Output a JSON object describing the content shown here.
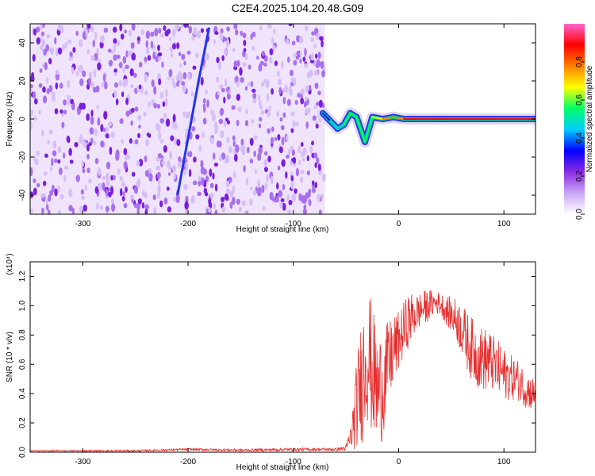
{
  "title": "C2E4.2025.104.20.48.G09",
  "chart_data": [
    {
      "type": "heatmap",
      "xlabel": "Height of straight line (km)",
      "ylabel": "Frequency (Hz)",
      "xlim": [
        -350,
        130
      ],
      "ylim": [
        -50,
        50
      ],
      "x_ticks": [
        "-300",
        "-200",
        "-100",
        "0",
        "100"
      ],
      "y_ticks": [
        "-40",
        "-20",
        "0",
        "20",
        "40"
      ],
      "colorbar": {
        "label": "Normalized spectral amplitude",
        "range": [
          0.0,
          1.0
        ],
        "ticks": [
          "0.0",
          "0.2",
          "0.4",
          "0.6",
          "0.8"
        ],
        "colors": [
          "#ffffff",
          "#c9a6f5",
          "#8a2be2",
          "#0000ff",
          "#00ccff",
          "#00ff66",
          "#ffff00",
          "#ff8000",
          "#ff0000",
          "#ff66cc"
        ]
      },
      "noise_region": {
        "x_range": [
          -350,
          -70
        ],
        "f_range": [
          -50,
          50
        ],
        "level": 0.1
      },
      "drift_trace": [
        {
          "x": -180,
          "f": 48
        },
        {
          "x": -190,
          "f": 20
        },
        {
          "x": -200,
          "f": -10
        },
        {
          "x": -210,
          "f": -40
        }
      ],
      "carrier_trace": [
        {
          "x": -72,
          "f": 3,
          "amp": 0.3
        },
        {
          "x": -65,
          "f": -1,
          "amp": 0.35
        },
        {
          "x": -58,
          "f": -5,
          "amp": 0.45
        },
        {
          "x": -52,
          "f": -3,
          "amp": 0.5
        },
        {
          "x": -46,
          "f": 3,
          "amp": 0.55
        },
        {
          "x": -40,
          "f": 1,
          "amp": 0.6
        },
        {
          "x": -32,
          "f": -12,
          "amp": 0.4
        },
        {
          "x": -25,
          "f": 1,
          "amp": 0.65
        },
        {
          "x": -15,
          "f": 0,
          "amp": 0.7
        },
        {
          "x": -5,
          "f": 1,
          "amp": 0.75
        },
        {
          "x": 5,
          "f": 0,
          "amp": 0.85
        },
        {
          "x": 40,
          "f": 0,
          "amp": 0.9
        },
        {
          "x": 85,
          "f": 0,
          "amp": 0.88
        },
        {
          "x": 130,
          "f": 0,
          "amp": 0.8
        }
      ]
    },
    {
      "type": "line",
      "xlabel": "Height of straight line (km)",
      "ylabel": "SNR (10 * v/v)",
      "yscale_note": "(x10⁴)",
      "xlim": [
        -350,
        130
      ],
      "ylim": [
        0,
        1.3
      ],
      "x_ticks": [
        "-300",
        "-200",
        "-100",
        "0",
        "100"
      ],
      "y_ticks": [
        "0.0",
        "0.2",
        "0.4",
        "0.6",
        "0.8",
        "1.0",
        "1.2"
      ],
      "line_color": "#e62e2e",
      "series": [
        {
          "x": [
            -350,
            -300,
            -250,
            -200,
            -150,
            -100,
            -60,
            -50,
            -45,
            -40,
            -35,
            -30,
            -25,
            -20,
            -15,
            -10,
            -5,
            0,
            5,
            10,
            15,
            20,
            25,
            30,
            35,
            40,
            45,
            50,
            55,
            60,
            65,
            70,
            75,
            80,
            85,
            90,
            95,
            100,
            105,
            110,
            115,
            120,
            125,
            130
          ],
          "values": [
            0.01,
            0.01,
            0.01,
            0.02,
            0.015,
            0.02,
            0.02,
            0.03,
            0.12,
            0.35,
            0.55,
            0.75,
            0.6,
            0.45,
            0.5,
            0.62,
            0.72,
            0.78,
            0.85,
            0.93,
            0.95,
            0.98,
            1.0,
            1.02,
            1.03,
            1.02,
            0.98,
            0.95,
            0.92,
            0.86,
            0.78,
            0.72,
            0.68,
            0.66,
            0.65,
            0.62,
            0.58,
            0.55,
            0.53,
            0.52,
            0.5,
            0.45,
            0.42,
            0.4
          ],
          "spread": [
            0.005,
            0.005,
            0.006,
            0.008,
            0.008,
            0.01,
            0.01,
            0.02,
            0.1,
            0.3,
            0.45,
            0.5,
            0.45,
            0.4,
            0.38,
            0.3,
            0.25,
            0.2,
            0.2,
            0.18,
            0.15,
            0.12,
            0.12,
            0.1,
            0.08,
            0.08,
            0.1,
            0.12,
            0.15,
            0.18,
            0.2,
            0.22,
            0.22,
            0.22,
            0.22,
            0.2,
            0.2,
            0.18,
            0.16,
            0.15,
            0.14,
            0.13,
            0.12,
            0.12
          ]
        }
      ]
    }
  ]
}
